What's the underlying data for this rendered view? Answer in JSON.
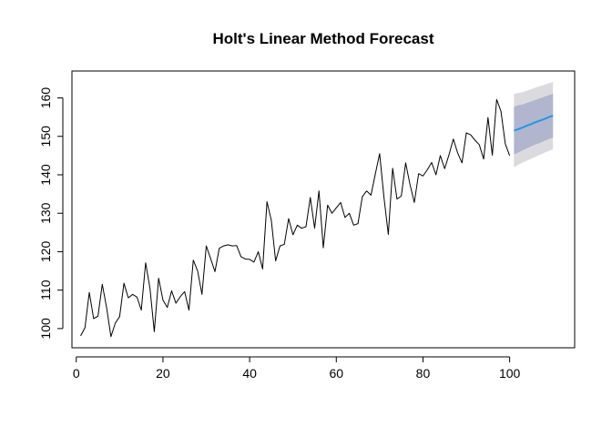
{
  "chart_data": {
    "type": "line",
    "title": "Holt's Linear Method Forecast",
    "xlabel": "",
    "ylabel": "",
    "xlim": [
      -1,
      115
    ],
    "ylim": [
      95,
      167
    ],
    "x_ticks": [
      0,
      20,
      40,
      60,
      80,
      100
    ],
    "y_ticks": [
      100,
      110,
      120,
      130,
      140,
      150,
      160
    ],
    "grid": false,
    "legend": "none",
    "series": [
      {
        "role": "observed",
        "color": "#000000",
        "x_start": 1,
        "values": [
          98.1,
          100.2,
          109.4,
          102.6,
          103.2,
          111.5,
          105.4,
          97.9,
          101.4,
          103.1,
          111.8,
          108.0,
          108.9,
          108.2,
          104.8,
          117.1,
          110.5,
          99.2,
          113.1,
          107.4,
          105.5,
          109.8,
          106.6,
          108.3,
          109.6,
          104.8,
          117.8,
          115.0,
          108.9,
          121.5,
          118.2,
          114.8,
          120.9,
          121.5,
          121.8,
          121.5,
          121.6,
          118.7,
          118.1,
          118.0,
          117.3,
          120.0,
          115.5,
          133.0,
          128.2,
          117.6,
          121.5,
          121.9,
          128.6,
          124.4,
          126.9,
          126.1,
          126.5,
          134.1,
          126.1,
          135.8,
          121.0,
          132.1,
          130.0,
          131.4,
          132.8,
          128.9,
          130.0,
          126.9,
          127.3,
          134.3,
          135.8,
          134.7,
          140.2,
          145.5,
          134.1,
          124.5,
          141.7,
          133.7,
          134.5,
          143.1,
          137.5,
          132.8,
          140.3,
          139.7,
          141.3,
          143.2,
          140.0,
          145.0,
          141.6,
          145.2,
          149.3,
          145.7,
          143.1,
          150.9,
          150.4,
          149.0,
          147.8,
          144.1,
          154.9,
          145.1,
          159.6,
          156.5,
          148.0,
          145.0
        ]
      },
      {
        "role": "point-forecast",
        "color": "#2297e6",
        "x_start": 101,
        "values": [
          151.5,
          151.9,
          152.3,
          152.8,
          153.2,
          153.7,
          154.1,
          154.5,
          155.0,
          155.4
        ]
      }
    ],
    "intervals": [
      {
        "level": "80%",
        "color": "#b1b5ce",
        "x_start": 101,
        "lower": [
          145.3,
          145.8,
          146.4,
          146.9,
          147.4,
          147.9,
          148.3,
          148.8,
          149.3,
          149.7
        ],
        "upper": [
          157.7,
          158.1,
          158.3,
          158.7,
          159.1,
          159.5,
          159.9,
          160.3,
          160.7,
          161.1
        ]
      },
      {
        "level": "95%",
        "color": "#dbdbdf",
        "x_start": 101,
        "lower": [
          142.0,
          142.6,
          143.2,
          143.7,
          144.2,
          144.7,
          145.2,
          145.7,
          146.2,
          146.6
        ],
        "upper": [
          161.0,
          161.3,
          161.5,
          161.9,
          162.3,
          162.7,
          163.1,
          163.4,
          163.8,
          164.2
        ]
      }
    ]
  }
}
